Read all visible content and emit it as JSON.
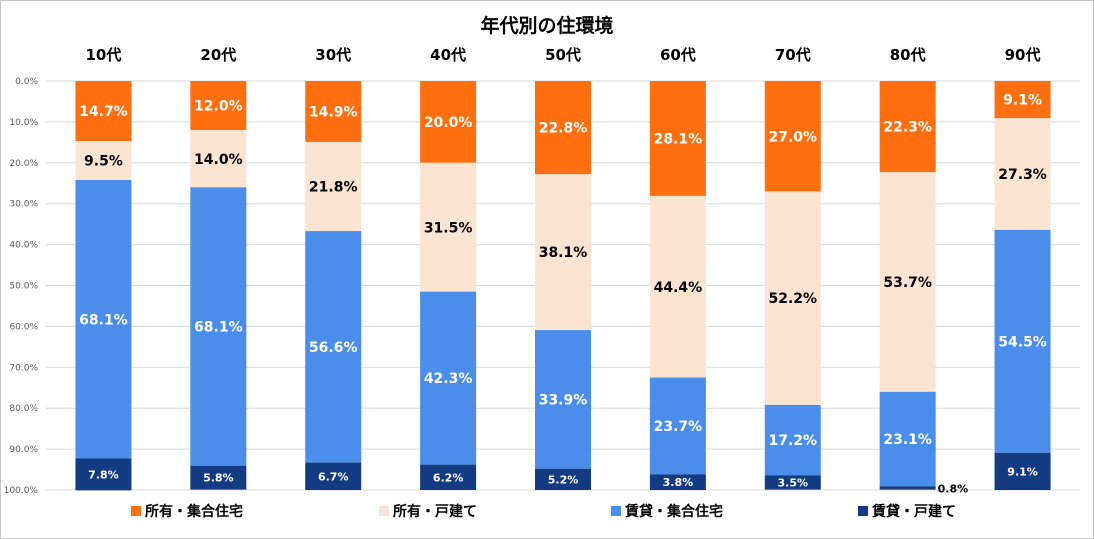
{
  "chart_data": {
    "type": "bar",
    "stacked": true,
    "orientation": "vertical",
    "title": "年代別の住環境",
    "categories": [
      "10代",
      "20代",
      "30代",
      "40代",
      "50代",
      "60代",
      "70代",
      "80代",
      "90代"
    ],
    "y_axis": {
      "ylim": [
        0,
        100
      ],
      "inverted": true,
      "tick_labels": [
        "0.0%",
        "10.0%",
        "20.0%",
        "30.0%",
        "40.0%",
        "50.0%",
        "60.0%",
        "70.0%",
        "80.0%",
        "90.0%",
        "100.0%"
      ],
      "grid": true
    },
    "series": [
      {
        "name": "所有・集合住宅",
        "color": "#FF6F0F",
        "values": [
          14.7,
          12.0,
          14.9,
          20.0,
          22.8,
          28.1,
          27.0,
          22.3,
          9.1
        ],
        "labels": [
          "14.7%",
          "12.0%",
          "14.9%",
          "20.0%",
          "22.8%",
          "28.1%",
          "27.0%",
          "22.3%",
          "9.1%"
        ]
      },
      {
        "name": "所有・戸建て",
        "color": "#FCE4D2",
        "values": [
          9.5,
          14.0,
          21.8,
          31.5,
          38.1,
          44.4,
          52.2,
          53.7,
          27.3
        ],
        "labels": [
          "9.5%",
          "14.0%",
          "21.8%",
          "31.5%",
          "38.1%",
          "44.4%",
          "52.2%",
          "53.7%",
          "27.3%"
        ]
      },
      {
        "name": "賃貸・集合住宅",
        "color": "#4B8DEB",
        "values": [
          68.1,
          68.1,
          56.6,
          42.3,
          33.9,
          23.7,
          17.2,
          23.1,
          54.5
        ],
        "labels": [
          "68.1%",
          "68.1%",
          "56.6%",
          "42.3%",
          "33.9%",
          "23.7%",
          "17.2%",
          "23.1%",
          "54.5%"
        ]
      },
      {
        "name": "賃貸・戸建て",
        "color": "#123B82",
        "values": [
          7.8,
          5.8,
          6.7,
          6.2,
          5.2,
          3.8,
          3.5,
          0.8,
          9.1
        ],
        "labels": [
          "7.8%",
          "5.8%",
          "6.7%",
          "6.2%",
          "5.2%",
          "3.8%",
          "3.5%",
          "0.8%",
          "9.1%"
        ]
      }
    ],
    "legend_position": "bottom"
  }
}
